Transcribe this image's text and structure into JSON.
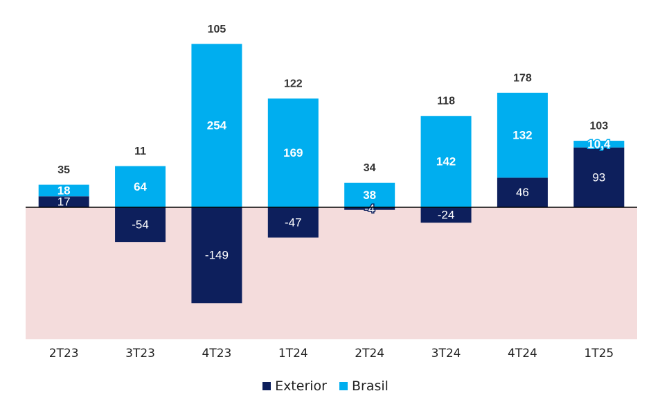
{
  "colors": {
    "exterior": "#0d1f5c",
    "brasil": "#00aeef",
    "negative_band": "#f4dcdc",
    "axis": "#000000",
    "total_label": "#333333",
    "bar_label": "#ffffff"
  },
  "chart_data": {
    "type": "bar",
    "stacked": true,
    "categories": [
      "2T23",
      "3T23",
      "4T23",
      "1T24",
      "2T24",
      "3T24",
      "4T24",
      "1T25"
    ],
    "series": [
      {
        "name": "Exterior",
        "values": [
          17,
          -54,
          -149,
          -47,
          -4,
          -24,
          46,
          93
        ],
        "labels": [
          "17",
          "-54",
          "-149",
          "-47",
          "-4",
          "-24",
          "46",
          "93"
        ]
      },
      {
        "name": "Brasil",
        "values": [
          18,
          64,
          254,
          169,
          38,
          142,
          132,
          10.4
        ],
        "labels": [
          "18",
          "64",
          "254",
          "169",
          "38",
          "142",
          "132",
          "10,4"
        ]
      }
    ],
    "totals": [
      "35",
      "11",
      "105",
      "122",
      "34",
      "118",
      "178",
      "103"
    ],
    "ylim": [
      -205,
      255
    ],
    "negative_region_shaded": true,
    "legend": "bottom-center",
    "title": "",
    "xlabel": "",
    "ylabel": ""
  }
}
